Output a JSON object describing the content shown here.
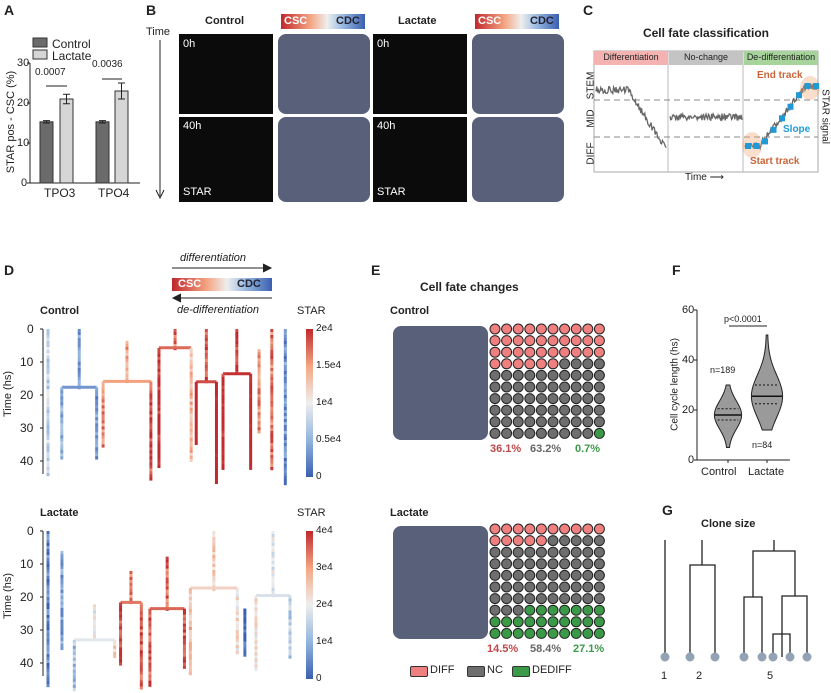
{
  "panels": {
    "A": "A",
    "B": "B",
    "C": "C",
    "D": "D",
    "E": "E",
    "F": "F",
    "G": "G"
  },
  "colors": {
    "diff": "#f08080",
    "nc": "#6e6e6e",
    "dediff": "#3a9a48",
    "csc": "#c0282d",
    "cdc": "#3b5fb0",
    "control_bar": "#6b6b6b",
    "lactate_bar": "#d6d6d6"
  },
  "panelB": {
    "time_label": "Time",
    "control": "Control",
    "lactate": "Lactate",
    "csc": "CSC",
    "cdc": "CDC",
    "t0": "0h",
    "t40": "40h",
    "star": "STAR"
  },
  "panelC": {
    "title": "Cell fate classification",
    "sections": [
      "Differentiation",
      "No-change",
      "De-differentiation"
    ],
    "ylevels": [
      "STEM",
      "MID",
      "DIFF"
    ],
    "right_label": "STAR signal",
    "xlabel": "Time ⟶",
    "end_track": "End track",
    "start_track": "Start track",
    "slope": "Slope"
  },
  "panelD": {
    "differentiation": "differentiation",
    "dedifferentiation": "de-differentiation",
    "csc": "CSC",
    "cdc": "CDC",
    "control": "Control",
    "lactate": "Lactate",
    "star": "STAR",
    "ylabel": "Time (hs)",
    "yticks": [
      "0",
      "10",
      "20",
      "30",
      "40"
    ],
    "control_cbar": [
      "2e4",
      "1.5e4",
      "1e4",
      "0.5e4",
      "0"
    ],
    "lactate_cbar": [
      "4e4",
      "3e4",
      "2e4",
      "1e4",
      "0"
    ]
  },
  "panelE": {
    "title": "Cell fate changes",
    "control": "Control",
    "lactate": "Lactate",
    "control_pct": [
      "36.1%",
      "63.2%",
      "0.7%"
    ],
    "lactate_pct": [
      "14.5%",
      "58.4%",
      "27.1%"
    ],
    "legend": [
      "DIFF",
      "NC",
      "DEDIFF"
    ]
  },
  "panelG": {
    "title": "Clone size",
    "labels": [
      "1",
      "2",
      "5"
    ]
  },
  "chart_data": [
    {
      "type": "bar",
      "panel": "A",
      "categories": [
        "TPO3",
        "TPO4"
      ],
      "series": [
        {
          "name": "Control",
          "values": [
            15.3,
            15.3
          ],
          "errors": [
            0.3,
            0.3
          ]
        },
        {
          "name": "Lactate",
          "values": [
            21.0,
            23.0
          ],
          "errors": [
            1.2,
            2.0
          ]
        }
      ],
      "ylabel": "STAR pos - CSC (%)",
      "ylim": [
        0,
        30
      ],
      "yticks": [
        "0",
        "10",
        "20",
        "30"
      ],
      "annotations": [
        "0.0007",
        "0.0036"
      ],
      "legend": "top-left"
    },
    {
      "type": "violin",
      "panel": "F",
      "categories": [
        "Control",
        "Lactate"
      ],
      "medians": [
        18,
        25.5
      ],
      "q1": [
        16,
        22.5
      ],
      "q3": [
        20.5,
        30
      ],
      "min": [
        5,
        12
      ],
      "max": [
        30,
        50
      ],
      "n_labels": [
        "n=189",
        "n=84"
      ],
      "pvalue": "p<0.0001",
      "ylabel": "Cell cycle length (hs)",
      "ylim": [
        0,
        60
      ],
      "yticks": [
        "0",
        "20",
        "40",
        "60"
      ]
    },
    {
      "type": "waffle",
      "panel": "E",
      "categories": [
        "DIFF",
        "NC",
        "DEDIFF"
      ],
      "series": [
        {
          "name": "Control",
          "values": [
            36.1,
            63.2,
            0.7
          ],
          "dots": [
            36,
            63,
            1
          ]
        },
        {
          "name": "Lactate",
          "values": [
            14.5,
            58.4,
            27.1
          ],
          "dots": [
            15,
            58,
            27
          ]
        }
      ]
    }
  ]
}
